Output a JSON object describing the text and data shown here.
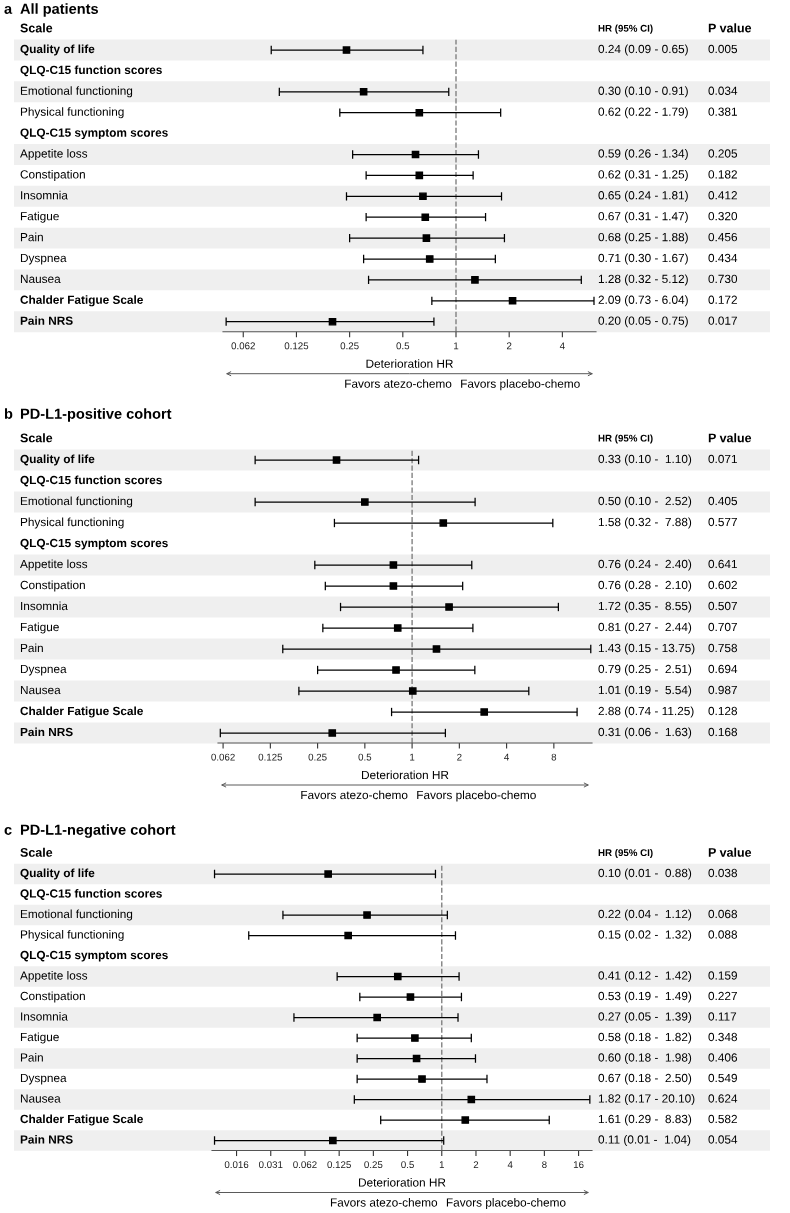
{
  "chart_data": [
    {
      "type": "scatter",
      "orientation": "horizontal",
      "title": "All patients",
      "xlabel": "Deterioration HR",
      "log": "x",
      "marker": "square",
      "color": "#000000",
      "categories": [
        "Quality of life",
        "QLQ-C15 function scores",
        "  Emotional functioning",
        "  Physical functioning",
        "QLQ-C15 symptom scores",
        "  Appetite loss",
        "  Constipation",
        "  Insomnia",
        "  Fatigue",
        "  Pain",
        "  Dyspnea",
        "  Nausea",
        "Chalder Fatigue Scale",
        "Pain NRS"
      ],
      "values": [
        0.24,
        null,
        0.3,
        0.62,
        null,
        0.59,
        0.62,
        0.65,
        0.67,
        0.68,
        0.71,
        1.28,
        2.09,
        0.2
      ],
      "errors": [
        [
          0.09,
          0.65
        ],
        null,
        [
          0.1,
          0.91
        ],
        [
          0.22,
          1.79
        ],
        null,
        [
          0.26,
          1.34
        ],
        [
          0.31,
          1.25
        ],
        [
          0.24,
          1.81
        ],
        [
          0.31,
          1.47
        ],
        [
          0.25,
          1.88
        ],
        [
          0.3,
          1.67
        ],
        [
          0.32,
          5.12
        ],
        [
          0.73,
          6.04
        ],
        [
          0.05,
          0.75
        ]
      ],
      "value_labels": [
        "0.24 (0.09 - 0.65)",
        null,
        "0.30 (0.10 - 0.91)",
        "0.62 (0.22 - 1.79)",
        null,
        "0.59 (0.26 - 1.34)",
        "0.62 (0.31 - 1.25)",
        "0.65 (0.24 - 1.81)",
        "0.67 (0.31 - 1.47)",
        "0.68 (0.25 - 1.88)",
        "0.71 (0.30 - 1.67)",
        "1.28 (0.32 - 5.12)",
        "2.09 (0.73 - 6.04)",
        "0.20 (0.05 - 0.75)"
      ],
      "xlim": [
        0.048,
        6.2
      ],
      "xticks": [
        {
          "value": 0.0625,
          "label": "0.062"
        },
        0.125,
        0.25,
        0.5,
        1,
        2,
        4
      ],
      "ref_lines": [
        {
          "axis": "x",
          "value": 1,
          "color": "#808080",
          "line_style": "dashed"
        }
      ],
      "bands": [
        {
          "axis": "y",
          "from": "Quality of life",
          "to": "Quality of life",
          "color": "#efefef"
        },
        {
          "axis": "y",
          "from": "  Emotional functioning",
          "to": "  Emotional functioning",
          "color": "#efefef"
        },
        {
          "axis": "y",
          "from": "  Appetite loss",
          "to": "  Appetite loss",
          "color": "#efefef"
        },
        {
          "axis": "y",
          "from": "  Insomnia",
          "to": "  Insomnia",
          "color": "#efefef"
        },
        {
          "axis": "y",
          "from": "  Pain",
          "to": "  Pain",
          "color": "#efefef"
        },
        {
          "axis": "y",
          "from": "  Nausea",
          "to": "  Nausea",
          "color": "#efefef"
        },
        {
          "axis": "y",
          "from": "Pain NRS",
          "to": "Pain NRS",
          "color": "#efefef"
        }
      ],
      "annotations": [
        "a",
        "Scale",
        "HR (95% CI)",
        "P value",
        "Favors atezo-chemo",
        "Favors placebo-chemo",
        "0.005",
        "0.034",
        "0.381",
        "0.205",
        "0.182",
        "0.412",
        "0.320",
        "0.456",
        "0.434",
        "0.730",
        "0.172",
        "0.017"
      ]
    },
    {
      "type": "scatter",
      "orientation": "horizontal",
      "title": "PD-L1-positive cohort",
      "xlabel": "Deterioration HR",
      "log": "x",
      "marker": "square",
      "color": "#000000",
      "categories": [
        "Quality of life",
        "QLQ-C15 function scores",
        "  Emotional functioning",
        "  Physical functioning",
        "QLQ-C15 symptom scores",
        "  Appetite loss",
        "  Constipation",
        "  Insomnia",
        "  Fatigue",
        "  Pain",
        "  Dyspnea",
        "  Nausea",
        "Chalder Fatigue Scale",
        "Pain NRS"
      ],
      "values": [
        0.33,
        null,
        0.5,
        1.58,
        null,
        0.76,
        0.76,
        1.72,
        0.81,
        1.43,
        0.79,
        1.01,
        2.88,
        0.31
      ],
      "errors": [
        [
          0.1,
          1.1
        ],
        null,
        [
          0.1,
          2.52
        ],
        [
          0.32,
          7.88
        ],
        null,
        [
          0.24,
          2.4
        ],
        [
          0.28,
          2.1
        ],
        [
          0.35,
          8.55
        ],
        [
          0.27,
          2.44
        ],
        [
          0.15,
          13.75
        ],
        [
          0.25,
          2.51
        ],
        [
          0.19,
          5.54
        ],
        [
          0.74,
          11.25
        ],
        [
          0.06,
          1.63
        ]
      ],
      "value_labels": [
        "0.33 (0.10 -  1.10)",
        null,
        "0.50 (0.10 -  2.52)",
        "1.58 (0.32 -  7.88)",
        null,
        "0.76 (0.24 -  2.40)",
        "0.76 (0.28 -  2.10)",
        "1.72 (0.35 -  8.55)",
        "0.81 (0.27 -  2.44)",
        "1.43 (0.15 - 13.75)",
        "0.79 (0.25 -  2.51)",
        "1.01 (0.19 -  5.54)",
        "2.88 (0.74 - 11.25)",
        "0.31 (0.06 -  1.63)"
      ],
      "xlim": [
        0.058,
        14
      ],
      "xticks": [
        {
          "value": 0.0625,
          "label": "0.062"
        },
        0.125,
        0.25,
        0.5,
        1,
        2,
        4,
        8
      ],
      "ref_lines": [
        {
          "axis": "x",
          "value": 1,
          "color": "#808080",
          "line_style": "dashed"
        }
      ],
      "bands": [
        {
          "axis": "y",
          "from": "Quality of life",
          "to": "Quality of life",
          "color": "#efefef"
        },
        {
          "axis": "y",
          "from": "  Emotional functioning",
          "to": "  Emotional functioning",
          "color": "#efefef"
        },
        {
          "axis": "y",
          "from": "  Appetite loss",
          "to": "  Appetite loss",
          "color": "#efefef"
        },
        {
          "axis": "y",
          "from": "  Insomnia",
          "to": "  Insomnia",
          "color": "#efefef"
        },
        {
          "axis": "y",
          "from": "  Pain",
          "to": "  Pain",
          "color": "#efefef"
        },
        {
          "axis": "y",
          "from": "  Nausea",
          "to": "  Nausea",
          "color": "#efefef"
        },
        {
          "axis": "y",
          "from": "Pain NRS",
          "to": "Pain NRS",
          "color": "#efefef"
        }
      ],
      "annotations": [
        "b",
        "Scale",
        "HR (95% CI)",
        "P value",
        "Favors atezo-chemo",
        "Favors placebo-chemo",
        "0.071",
        "0.405",
        "0.577",
        "0.641",
        "0.602",
        "0.507",
        "0.707",
        "0.758",
        "0.694",
        "0.987",
        "0.128",
        "0.168"
      ]
    },
    {
      "type": "scatter",
      "orientation": "horizontal",
      "title": "PD-L1-negative cohort",
      "xlabel": "Deterioration HR",
      "log": "x",
      "marker": "square",
      "color": "#000000",
      "categories": [
        "Quality of life",
        "QLQ-C15 function scores",
        "  Emotional functioning",
        "  Physical functioning",
        "QLQ-C15 symptom scores",
        "  Appetite loss",
        "  Constipation",
        "  Insomnia",
        "  Fatigue",
        "  Pain",
        "  Dyspnea",
        "  Nausea",
        "Chalder Fatigue Scale",
        "Pain NRS"
      ],
      "values": [
        0.1,
        null,
        0.22,
        0.15,
        null,
        0.41,
        0.53,
        0.27,
        0.58,
        0.6,
        0.67,
        1.82,
        1.61,
        0.11
      ],
      "errors": [
        [
          0.01,
          0.88
        ],
        null,
        [
          0.04,
          1.12
        ],
        [
          0.02,
          1.32
        ],
        null,
        [
          0.12,
          1.42
        ],
        [
          0.19,
          1.49
        ],
        [
          0.05,
          1.39
        ],
        [
          0.18,
          1.82
        ],
        [
          0.18,
          1.98
        ],
        [
          0.18,
          2.5
        ],
        [
          0.17,
          20.1
        ],
        [
          0.29,
          8.83
        ],
        [
          0.01,
          1.04
        ]
      ],
      "value_labels": [
        "0.10 (0.01 -  0.88)",
        null,
        "0.22 (0.04 -  1.12)",
        "0.15 (0.02 -  1.32)",
        null,
        "0.41 (0.12 -  1.42)",
        "0.53 (0.19 -  1.49)",
        "0.27 (0.05 -  1.39)",
        "0.58 (0.18 -  1.82)",
        "0.60 (0.18 -  1.98)",
        "0.67 (0.18 -  2.50)",
        "1.82 (0.17 - 20.10)",
        "1.61 (0.29 -  8.83)",
        "0.11 (0.01 -  1.04)"
      ],
      "xlim": [
        0.0095,
        21
      ],
      "xticks": [
        {
          "value": 0.015625,
          "label": "0.016"
        },
        {
          "value": 0.03125,
          "label": "0.031"
        },
        {
          "value": 0.0625,
          "label": "0.062"
        },
        0.125,
        0.25,
        0.5,
        1,
        2,
        4,
        8,
        16
      ],
      "ref_lines": [
        {
          "axis": "x",
          "value": 1,
          "color": "#808080",
          "line_style": "dashed"
        }
      ],
      "bands": [
        {
          "axis": "y",
          "from": "Quality of life",
          "to": "Quality of life",
          "color": "#efefef"
        },
        {
          "axis": "y",
          "from": "  Emotional functioning",
          "to": "  Emotional functioning",
          "color": "#efefef"
        },
        {
          "axis": "y",
          "from": "  Appetite loss",
          "to": "  Appetite loss",
          "color": "#efefef"
        },
        {
          "axis": "y",
          "from": "  Insomnia",
          "to": "  Insomnia",
          "color": "#efefef"
        },
        {
          "axis": "y",
          "from": "  Pain",
          "to": "  Pain",
          "color": "#efefef"
        },
        {
          "axis": "y",
          "from": "  Nausea",
          "to": "  Nausea",
          "color": "#efefef"
        },
        {
          "axis": "y",
          "from": "Pain NRS",
          "to": "Pain NRS",
          "color": "#efefef"
        }
      ],
      "annotations": [
        "c",
        "Scale",
        "HR (95% CI)",
        "P value",
        "Favors atezo-chemo",
        "Favors placebo-chemo",
        "0.038",
        "0.068",
        "0.088",
        "0.159",
        "0.227",
        "0.117",
        "0.348",
        "0.406",
        "0.549",
        "0.624",
        "0.582",
        "0.054"
      ]
    }
  ]
}
